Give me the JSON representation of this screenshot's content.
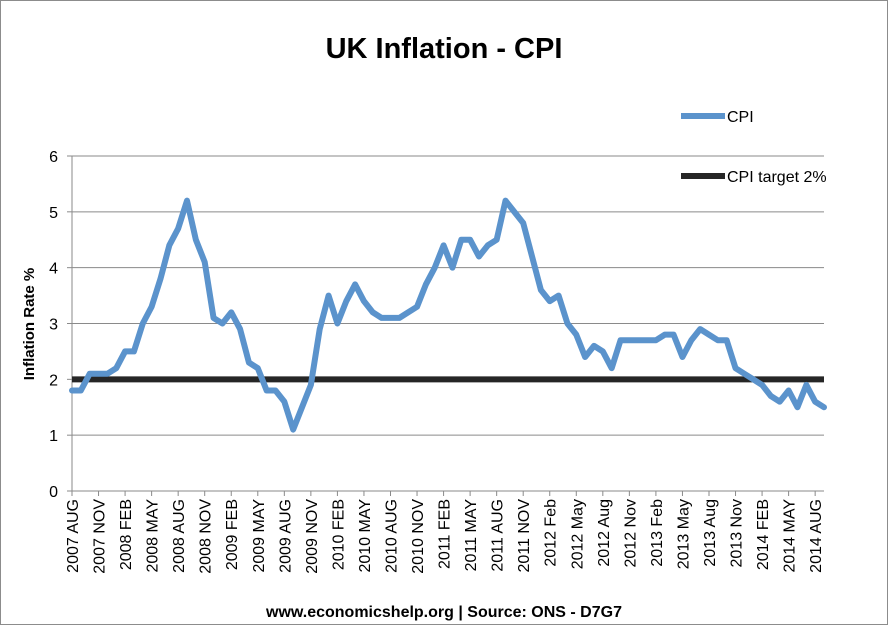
{
  "chart_data": {
    "type": "line",
    "title": "UK Inflation - CPI",
    "ylabel": "Inflation Rate %",
    "xlabel": "",
    "ylim": [
      0,
      6
    ],
    "yticks": [
      0,
      1,
      2,
      3,
      4,
      5,
      6
    ],
    "grid": true,
    "legend_position": "top-right",
    "x_tick_labels": [
      "2007 AUG",
      "2007 NOV",
      "2008 FEB",
      "2008 MAY",
      "2008 AUG",
      "2008 NOV",
      "2009 FEB",
      "2009 MAY",
      "2009 AUG",
      "2009 NOV",
      "2010 FEB",
      "2010 MAY",
      "2010 AUG",
      "2010 NOV",
      "2011 FEB",
      "2011 MAY",
      "2011 AUG",
      "2011 NOV",
      "2012 Feb",
      "2012 May",
      "2012 Aug",
      "2012 Nov",
      "2013 Feb",
      "2013 May",
      "2013 Aug",
      "2013 Nov",
      "2014 FEB",
      "2014 MAY",
      "2014 AUG"
    ],
    "series": [
      {
        "name": "CPI",
        "color": "#5b93cc",
        "values": [
          1.8,
          1.8,
          2.1,
          2.1,
          2.1,
          2.2,
          2.5,
          2.5,
          3.0,
          3.3,
          3.8,
          4.4,
          4.7,
          5.2,
          4.5,
          4.1,
          3.1,
          3.0,
          3.2,
          2.9,
          2.3,
          2.2,
          1.8,
          1.8,
          1.6,
          1.1,
          1.5,
          1.9,
          2.9,
          3.5,
          3.0,
          3.4,
          3.7,
          3.4,
          3.2,
          3.1,
          3.1,
          3.1,
          3.2,
          3.3,
          3.7,
          4.0,
          4.4,
          4.0,
          4.5,
          4.5,
          4.2,
          4.4,
          4.5,
          5.2,
          5.0,
          4.8,
          4.2,
          3.6,
          3.4,
          3.5,
          3.0,
          2.8,
          2.4,
          2.6,
          2.5,
          2.2,
          2.7,
          2.7,
          2.7,
          2.7,
          2.7,
          2.8,
          2.8,
          2.4,
          2.7,
          2.9,
          2.8,
          2.7,
          2.7,
          2.2,
          2.1,
          2.0,
          1.9,
          1.7,
          1.6,
          1.8,
          1.5,
          1.9,
          1.6,
          1.5
        ]
      },
      {
        "name": "CPI target 2%",
        "color": "#262626",
        "constant": 2
      }
    ]
  },
  "footer": {
    "source": "www.economicshelp.org | Source: ONS - D7G7"
  }
}
